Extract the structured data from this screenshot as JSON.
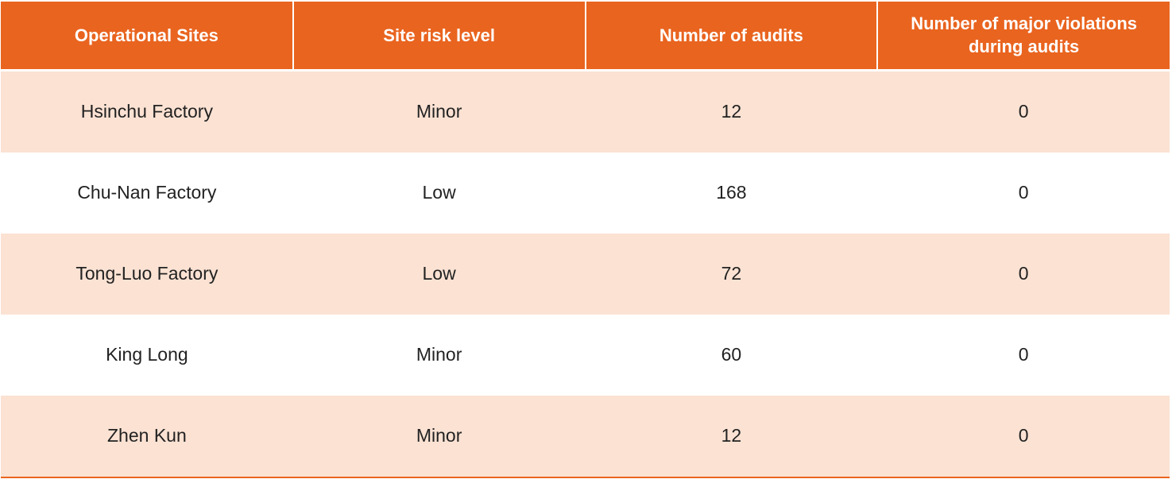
{
  "colors": {
    "header_bg": "#e9641f",
    "header_text": "#ffffff",
    "row_alt_bg": "#fbe2d3",
    "row_bg": "#ffffff",
    "cell_text": "#222222"
  },
  "table": {
    "headers": [
      "Operational Sites",
      "Site risk level",
      "Number of audits",
      "Number of major violations during audits"
    ],
    "rows": [
      {
        "site": "Hsinchu Factory",
        "risk": "Minor",
        "audits": "12",
        "violations": "0"
      },
      {
        "site": "Chu-Nan Factory",
        "risk": "Low",
        "audits": "168",
        "violations": "0"
      },
      {
        "site": "Tong-Luo Factory",
        "risk": "Low",
        "audits": "72",
        "violations": "0"
      },
      {
        "site": "King Long",
        "risk": "Minor",
        "audits": "60",
        "violations": "0"
      },
      {
        "site": "Zhen Kun",
        "risk": "Minor",
        "audits": "12",
        "violations": "0"
      }
    ]
  }
}
